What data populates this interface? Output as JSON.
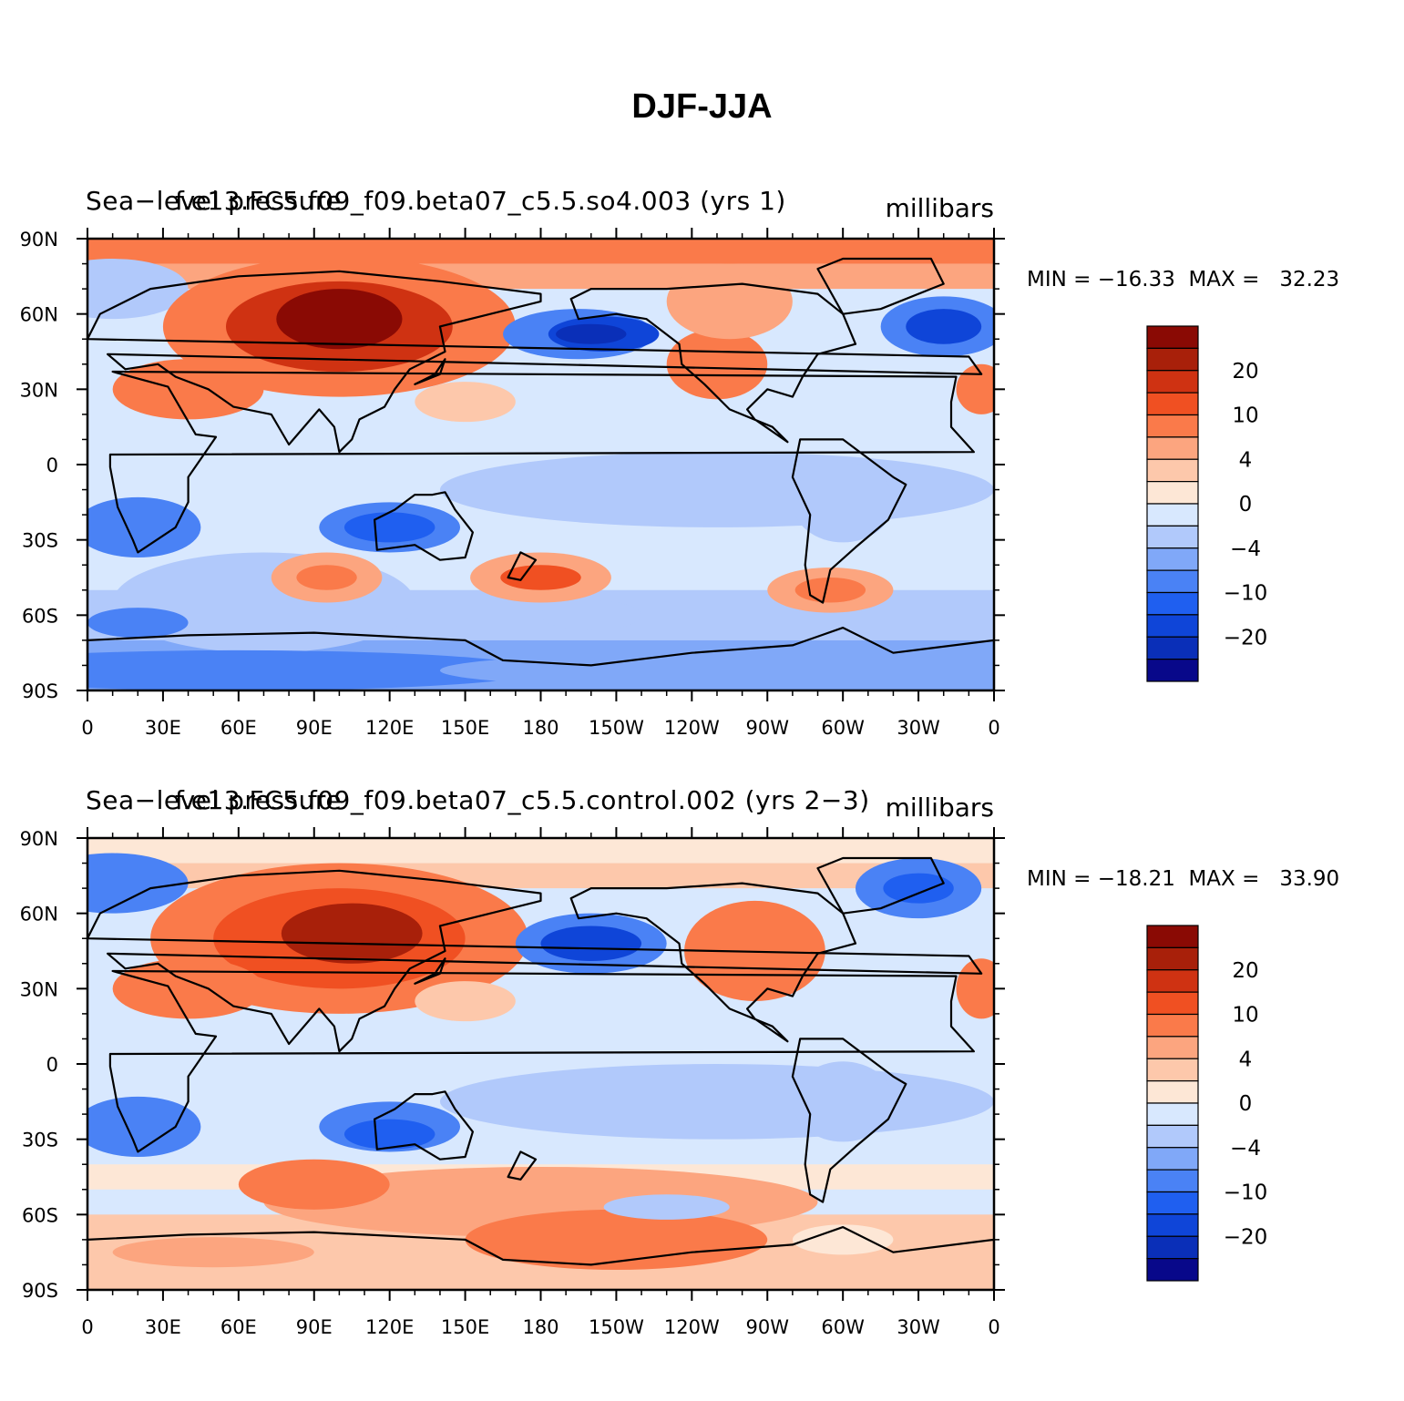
{
  "title": "DJF-JJA",
  "colorbar": {
    "colors": [
      "#08088a",
      "#0a2fb8",
      "#0f45d8",
      "#1f5ff0",
      "#4a82f5",
      "#80a8f8",
      "#b1c9fb",
      "#d8e8fe",
      "#fde7d6",
      "#fdc8ab",
      "#fca57f",
      "#fa7a4a",
      "#f05022",
      "#cf3212",
      "#a8200a",
      "#8a0a04"
    ],
    "labels": [
      "20",
      "10",
      "4",
      "0",
      "−4",
      "−10",
      "−20"
    ]
  },
  "x_ticks": [
    "0",
    "30E",
    "60E",
    "90E",
    "120E",
    "150E",
    "180",
    "150W",
    "120W",
    "90W",
    "60W",
    "30W",
    "0"
  ],
  "y_ticks": [
    "90N",
    "60N",
    "30N",
    "0",
    "30S",
    "60S",
    "90S"
  ],
  "panels": [
    {
      "variable": "Sea−level pressure",
      "case": "f.e13.FC5.f09_f09.beta07_c5.5.so4.003 (yrs 1)",
      "units": "millibars",
      "stats": "MIN = −16.33  MAX =   32.23"
    },
    {
      "variable": "Sea−level pressure",
      "case": "f.e13.FC5.f09_f09.beta07_c5.5.control.002 (yrs 2−3)",
      "units": "millibars",
      "stats": "MIN = −18.21  MAX =   33.90"
    }
  ]
}
